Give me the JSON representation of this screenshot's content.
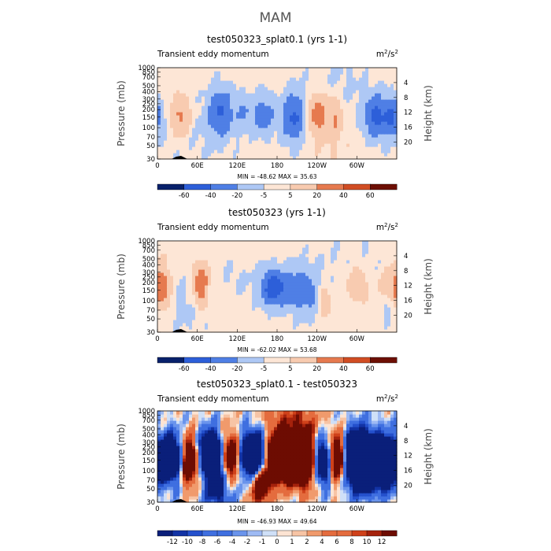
{
  "page_title": "MAM",
  "units": {
    "base": "m",
    "sup1": "2",
    "mid": "/s",
    "sup2": "2"
  },
  "x_ticks": [
    "0",
    "60E",
    "120E",
    "180",
    "120W",
    "60W"
  ],
  "pressure_label": "Pressure (mb)",
  "height_label": "Height (km)",
  "pressure_ticks": [
    "30",
    "50",
    "70",
    "100",
    "150",
    "200",
    "250",
    "300",
    "400",
    "500",
    "700",
    "850",
    "1000"
  ],
  "height_ticks": [
    "4",
    "8",
    "12",
    "16",
    "20"
  ],
  "colors": {
    "abs_palette": [
      "#08216b",
      "#1a3fbf",
      "#2d5fd9",
      "#4f7fe5",
      "#7ea3ef",
      "#aec8f5",
      "#d3e3f7",
      "#fde6d6",
      "#f8cbb0",
      "#f2a27a",
      "#e67a4f",
      "#d14d23",
      "#a52410",
      "#6d0f04"
    ],
    "diff_palette": [
      "#0a1f7a",
      "#1233a5",
      "#2450cc",
      "#3f6fe0",
      "#6a94ec",
      "#9ebaf4",
      "#cfe0f8",
      "#fde4d3",
      "#f7c4a5",
      "#f09a6c",
      "#e46c3e",
      "#cf411a",
      "#a5220c",
      "#6d0c02"
    ]
  },
  "chart_data": [
    {
      "type": "heatmap",
      "title": "test050323_splat0.1 (yrs 1-1)",
      "subtitle": "Transient eddy momentum",
      "stats": "MIN = -48.62   MAX =  35.63",
      "x": "longitude 0-360",
      "y": "pressure 1000-30 mb",
      "colorbar_levels": [
        -60,
        -40,
        -20,
        -5,
        5,
        20,
        40,
        60
      ],
      "colorbar_tick_labels": [
        "-60",
        "-40",
        "-20",
        "-5",
        "5",
        "20",
        "40",
        "60"
      ],
      "blobs": [
        [
          35,
          200,
          10,
          0.55,
          28
        ],
        [
          95,
          160,
          13,
          0.65,
          -40
        ],
        [
          130,
          160,
          10,
          0.5,
          -18
        ],
        [
          160,
          180,
          12,
          0.55,
          -30
        ],
        [
          205,
          200,
          12,
          0.7,
          -44
        ],
        [
          240,
          170,
          9,
          0.55,
          30
        ],
        [
          265,
          180,
          10,
          0.6,
          22
        ],
        [
          330,
          190,
          14,
          0.6,
          -45
        ],
        [
          355,
          200,
          8,
          0.5,
          -35
        ],
        [
          270,
          60,
          30,
          0.9,
          -8
        ],
        [
          60,
          400,
          40,
          1.0,
          -6
        ],
        [
          250,
          500,
          30,
          0.8,
          4
        ]
      ]
    },
    {
      "type": "heatmap",
      "title": "test050323 (yrs 1-1)",
      "subtitle": "Transient eddy momentum",
      "stats": "MIN = -62.02   MAX =  53.68",
      "x": "longitude 0-360",
      "y": "pressure 1000-30 mb",
      "colorbar_levels": [
        -60,
        -40,
        -20,
        -5,
        5,
        20,
        40,
        60
      ],
      "colorbar_tick_labels": [
        "-60",
        "-40",
        "-20",
        "-5",
        "5",
        "20",
        "40",
        "60"
      ],
      "blobs": [
        [
          5,
          180,
          10,
          0.6,
          38
        ],
        [
          65,
          160,
          8,
          0.55,
          40
        ],
        [
          45,
          350,
          20,
          1.0,
          -8
        ],
        [
          120,
          120,
          22,
          0.6,
          -6
        ],
        [
          175,
          180,
          14,
          0.5,
          -55
        ],
        [
          210,
          190,
          12,
          0.6,
          -30
        ],
        [
          235,
          230,
          14,
          0.7,
          -20
        ],
        [
          250,
          280,
          8,
          0.5,
          25
        ],
        [
          300,
          150,
          12,
          0.5,
          18
        ],
        [
          345,
          170,
          8,
          0.4,
          25
        ],
        [
          350,
          280,
          10,
          0.6,
          -15
        ],
        [
          290,
          60,
          40,
          1.0,
          -5
        ]
      ]
    },
    {
      "type": "heatmap",
      "title": "test050323_splat0.1 - test050323",
      "subtitle": "Transient eddy momentum",
      "stats": "MIN = -46.93   MAX =  49.64",
      "x": "longitude 0-360",
      "y": "pressure 1000-30 mb",
      "colorbar_levels": [
        -12,
        -10,
        -8,
        -6,
        -4,
        -2,
        -1,
        0,
        1,
        2,
        4,
        6,
        8,
        10,
        12
      ],
      "colorbar_tick_labels": [
        "-12",
        "-10",
        "-8",
        "-6",
        "-4",
        "-2",
        "-1",
        "0",
        "1",
        "2",
        "4",
        "6",
        "8",
        "10",
        "12"
      ],
      "blobs": [
        [
          20,
          180,
          12,
          0.6,
          -35
        ],
        [
          48,
          200,
          10,
          0.6,
          28
        ],
        [
          80,
          150,
          12,
          0.55,
          -40
        ],
        [
          110,
          170,
          10,
          0.6,
          25
        ],
        [
          145,
          160,
          14,
          0.6,
          -40
        ],
        [
          185,
          180,
          16,
          0.6,
          45
        ],
        [
          220,
          180,
          12,
          0.7,
          40
        ],
        [
          250,
          200,
          10,
          0.6,
          -30
        ],
        [
          270,
          180,
          10,
          0.6,
          35
        ],
        [
          305,
          180,
          18,
          0.7,
          -45
        ],
        [
          345,
          200,
          12,
          0.6,
          -35
        ],
        [
          155,
          500,
          10,
          0.5,
          25
        ],
        [
          90,
          600,
          14,
          0.6,
          -15
        ],
        [
          200,
          40,
          30,
          0.6,
          8
        ],
        [
          320,
          400,
          20,
          0.5,
          -10
        ]
      ]
    }
  ]
}
